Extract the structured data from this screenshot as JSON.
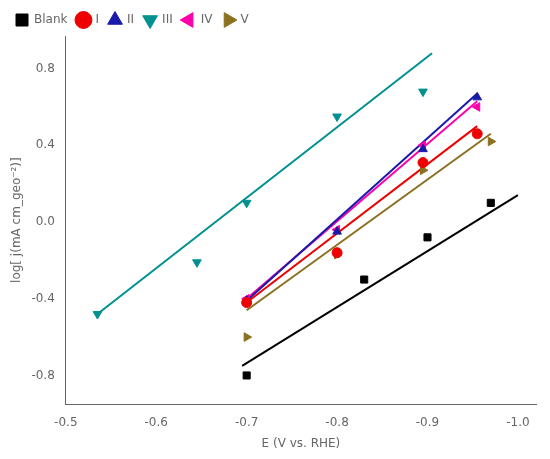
{
  "chart_data": {
    "type": "scatter",
    "xlabel": "E (V vs. RHE)",
    "ylabel": "log[ j(mA cm_geo⁻²)]",
    "xlim": [
      -0.5,
      -1.02
    ],
    "ylim": [
      -0.95,
      0.97
    ],
    "xticks": [
      -0.5,
      -0.6,
      -0.7,
      -0.8,
      -0.9,
      {
        "value": -1.0,
        "label": "-1.0"
      }
    ],
    "yticks": [
      -0.8,
      -0.4,
      {
        "value": 0.0,
        "label": "0.0"
      },
      0.4,
      0.8
    ],
    "grid": false,
    "legend": "upper left",
    "series": [
      {
        "name": "Blank",
        "color": "#000000",
        "marker": "square",
        "line_style": "solid",
        "x": [
          -0.7,
          -0.83,
          -0.9,
          -0.97
        ],
        "values": [
          -0.8,
          -0.3,
          -0.08,
          0.1
        ],
        "fit_x": [
          -0.695,
          -1.0
        ],
        "fit_values": [
          -0.75,
          0.14
        ]
      },
      {
        "name": "I",
        "color": "#ee0000",
        "marker": "circle",
        "line_style": "solid",
        "x": [
          -0.7,
          -0.8,
          -0.895,
          -0.955
        ],
        "values": [
          -0.42,
          -0.16,
          0.31,
          0.46
        ],
        "fit_x": [
          -0.7,
          -0.955
        ],
        "fit_values": [
          -0.42,
          0.5
        ]
      },
      {
        "name": "II",
        "color": "#1a1aaa",
        "marker": "triangle-up",
        "line_style": "solid",
        "x": [
          -0.7,
          -0.8,
          -0.895,
          -0.955
        ],
        "values": [
          -0.41,
          -0.05,
          0.38,
          0.65
        ],
        "fit_x": [
          -0.7,
          -0.955
        ],
        "fit_values": [
          -0.41,
          0.67
        ]
      },
      {
        "name": "III",
        "color": "#009090",
        "marker": "triangle-down",
        "line_style": "solid",
        "x": [
          -0.535,
          -0.645,
          -0.7,
          -0.8,
          -0.895
        ],
        "values": [
          -0.48,
          -0.21,
          0.1,
          0.55,
          0.68
        ],
        "fit_x": [
          -0.535,
          -0.905
        ],
        "fit_values": [
          -0.48,
          0.88
        ]
      },
      {
        "name": "IV",
        "color": "#ff00aa",
        "marker": "triangle-left",
        "line_style": "solid",
        "x": [
          -0.7,
          -0.8,
          -0.895,
          -0.955
        ],
        "values": [
          -0.4,
          -0.04,
          0.4,
          0.6
        ],
        "fit_x": [
          -0.7,
          -0.955
        ],
        "fit_values": [
          -0.4,
          0.63
        ]
      },
      {
        "name": "V",
        "color": "#8b7020",
        "marker": "triangle-right",
        "line_style": "solid",
        "x": [
          -0.7,
          -0.8,
          -0.895,
          -0.97
        ],
        "values": [
          -0.6,
          -0.17,
          0.27,
          0.42
        ],
        "fit_x": [
          -0.7,
          -0.97
        ],
        "fit_values": [
          -0.46,
          0.46
        ]
      }
    ]
  }
}
